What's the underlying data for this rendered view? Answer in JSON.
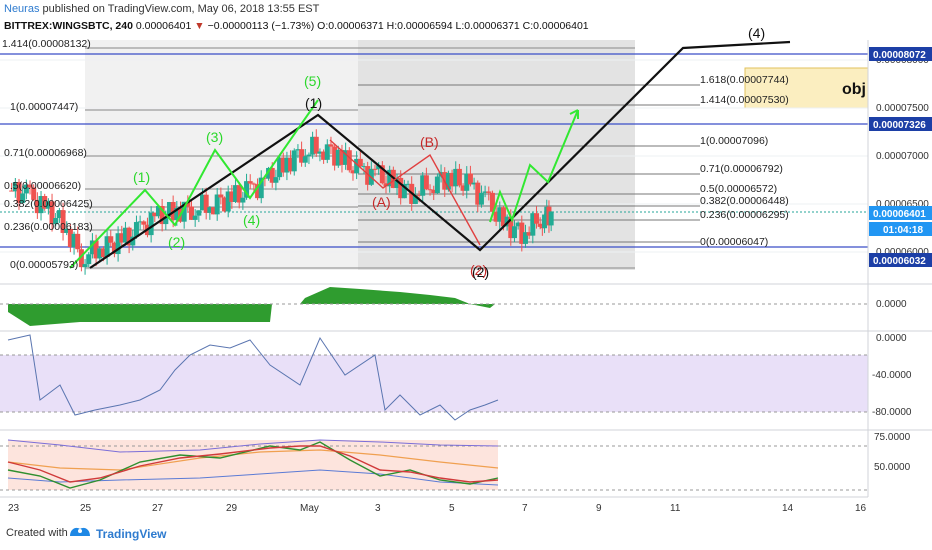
{
  "header": {
    "author": "Neuras",
    "published_text": "published on TradingView.com, May 06, 2018 13:55 EST",
    "symbol": "BITTREX:WINGSBTC, 240",
    "price": "0.00006401",
    "change": "−0.00000113 (−1.73%)",
    "ohlc": "O:0.00006371 H:0.00006594 L:0.00006371 C:0.00006401"
  },
  "footer": {
    "created_with": "Created with",
    "brand": "TradingView"
  },
  "colors": {
    "up": "#22ab94",
    "down": "#ef5350",
    "wave_green": "#31e831",
    "wave_red": "#c62828",
    "price_badge": "#2962ff"
  },
  "chart_data": [
    {
      "type": "candlestick",
      "title": "BITTREX:WINGSBTC, 240",
      "x_ticks": [
        "23",
        "25",
        "27",
        "29",
        "May",
        "3",
        "5",
        "7",
        "9",
        "11",
        "14",
        "16"
      ],
      "y_ticks": [
        "0.00008000",
        "0.00007500",
        "0.00007000",
        "0.00006500",
        "0.00006000"
      ],
      "ylim": [
        5.85e-05,
        8.15e-05
      ],
      "price_axis_badges": [
        "0.00008072",
        "0.00007326",
        "0.00006401",
        "01:04:18",
        "0.00006032"
      ],
      "close_path": [
        [
          0,
          6.64e-05
        ],
        [
          0.5,
          6.6e-05
        ],
        [
          1,
          6.45e-05
        ],
        [
          1.5,
          6.3e-05
        ],
        [
          2,
          5.95e-05
        ],
        [
          2.5,
          6.05e-05
        ],
        [
          3,
          6.1e-05
        ],
        [
          3.5,
          6.2e-05
        ],
        [
          4,
          6.35e-05
        ],
        [
          4.5,
          6.42e-05
        ],
        [
          5,
          6.45e-05
        ],
        [
          5.5,
          6.5e-05
        ],
        [
          6,
          6.55e-05
        ],
        [
          6.5,
          6.62e-05
        ],
        [
          7,
          6.72e-05
        ],
        [
          7.5,
          6.9e-05
        ],
        [
          8,
          7.05e-05
        ],
        [
          8.5,
          7.1e-05
        ],
        [
          9,
          7e-05
        ],
        [
          9.5,
          6.85e-05
        ],
        [
          10,
          6.8e-05
        ],
        [
          10.5,
          6.72e-05
        ],
        [
          11,
          6.62e-05
        ],
        [
          11.5,
          6.72e-05
        ],
        [
          12,
          6.78e-05
        ],
        [
          12.5,
          6.7e-05
        ],
        [
          13,
          6.55e-05
        ],
        [
          13.5,
          6.3e-05
        ],
        [
          14,
          6.2e-05
        ],
        [
          14.5,
          6.35e-05
        ],
        [
          14.8,
          6.4e-05
        ]
      ],
      "fib_retracement_left": [
        {
          "level": "1",
          "price": "0.00007447"
        },
        {
          "level": "0.71",
          "price": "0.00006968"
        },
        {
          "level": "0.5",
          "price": "0.00006620"
        },
        {
          "level": "0.382",
          "price": "0.00006425"
        },
        {
          "level": "0.236",
          "price": "0.00006183"
        },
        {
          "level": "0",
          "price": "0.00005793"
        }
      ],
      "fib_left_top_label": "1.414(0.00008132)",
      "fib_retracement_right": [
        {
          "level": "1.618",
          "price": "0.00007744"
        },
        {
          "level": "1.414",
          "price": "0.00007530"
        },
        {
          "level": "1",
          "price": "0.00007096"
        },
        {
          "level": "0.71",
          "price": "0.00006792"
        },
        {
          "level": "0.5",
          "price": "0.00006572"
        },
        {
          "level": "0.382",
          "price": "0.00006448"
        },
        {
          "level": "0.236",
          "price": "0.00006295"
        },
        {
          "level": "0",
          "price": "0.00006047"
        }
      ],
      "horizontal_lines": [
        "0.00008072",
        "0.00007326",
        "0.00006032"
      ],
      "wave_labels_green": [
        "(1)",
        "(2)",
        "(3)",
        "(4)",
        "(5)"
      ],
      "wave_labels_red": [
        "(A)",
        "(B)",
        "(2)"
      ],
      "wave_labels_black": [
        "(1)",
        "(2)",
        "(4)"
      ],
      "target_box_label": "obj"
    },
    {
      "type": "area",
      "name": "oscillator",
      "y_ticks": [
        "0.0000"
      ]
    },
    {
      "type": "line",
      "name": "williams_r",
      "y_ticks": [
        "0.0000",
        "-40.0000",
        "-80.0000"
      ],
      "ylim": [
        -100,
        0
      ]
    },
    {
      "type": "line",
      "name": "stochastic_bands",
      "y_ticks": [
        "75.0000",
        "50.0000"
      ]
    }
  ]
}
